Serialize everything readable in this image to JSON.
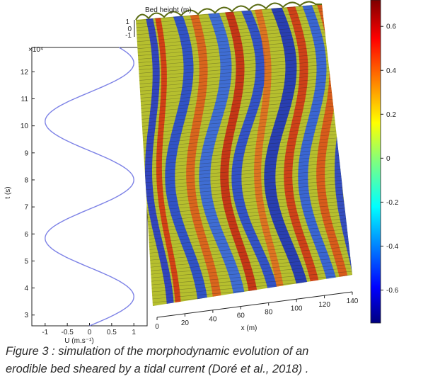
{
  "figure": {
    "velocity_panel": {
      "y_label": "t (s)",
      "y_exponent": "×10⁴",
      "y_ticks": [
        "3",
        "4",
        "5",
        "6",
        "7",
        "8",
        "9",
        "10",
        "11",
        "12"
      ],
      "x_label": "U (m.s⁻¹)",
      "x_ticks": [
        "-1",
        "-0.5",
        "0",
        "0.5",
        "1"
      ],
      "curve_color": "#7d82e6"
    },
    "bed_panel": {
      "z_label": "Bed height (m)",
      "z_ticks": [
        "1",
        "0",
        "-1"
      ],
      "x_label": "x (m)",
      "x_ticks": [
        "0",
        "20",
        "40",
        "60",
        "80",
        "100",
        "120",
        "140"
      ]
    },
    "colorbar": {
      "ticks": [
        "0.6",
        "0.4",
        "0.2",
        "0",
        "-0.2",
        "-0.4",
        "-0.6"
      ],
      "colormap": "jet"
    }
  },
  "chart_data": {
    "type": "line",
    "title": "",
    "xlabel": "U (m.s⁻¹)",
    "ylabel": "t (s)",
    "xlim": [
      -1.3,
      1.3
    ],
    "ylim": [
      2.6,
      12.9
    ],
    "y_scale_factor": "×10⁴",
    "series": [
      {
        "x": [
          0.0,
          0.26,
          0.5,
          0.7,
          0.86,
          0.96,
          1.0,
          0.96,
          0.86,
          0.7,
          0.5,
          0.26,
          0.0,
          -0.26,
          -0.5,
          -0.7,
          -0.86,
          -0.96,
          -1.0,
          -0.96,
          -0.86,
          -0.7,
          -0.5,
          -0.26,
          0.0,
          0.26,
          0.5,
          0.7,
          0.86,
          0.96,
          1.0,
          0.96,
          0.86,
          0.7,
          0.5,
          0.26,
          0.0
        ],
        "y": [
          2.6,
          2.78,
          2.96,
          3.14,
          3.32,
          3.5,
          3.68,
          3.86,
          4.04,
          4.22,
          4.4,
          4.58,
          4.76,
          4.94,
          5.12,
          5.3,
          5.48,
          5.66,
          5.84,
          6.02,
          6.2,
          6.38,
          6.56,
          6.74,
          6.92,
          7.1,
          7.28,
          7.46,
          7.64,
          7.82,
          8.0,
          8.18,
          8.36,
          8.54,
          8.72,
          8.9,
          9.08
        ]
      }
    ]
  },
  "caption": {
    "line1": "Figure 3 : simulation of the morphodynamic evolution of an",
    "line2": "erodible bed sheared by a tidal current (Doré et al., 2018) ."
  }
}
